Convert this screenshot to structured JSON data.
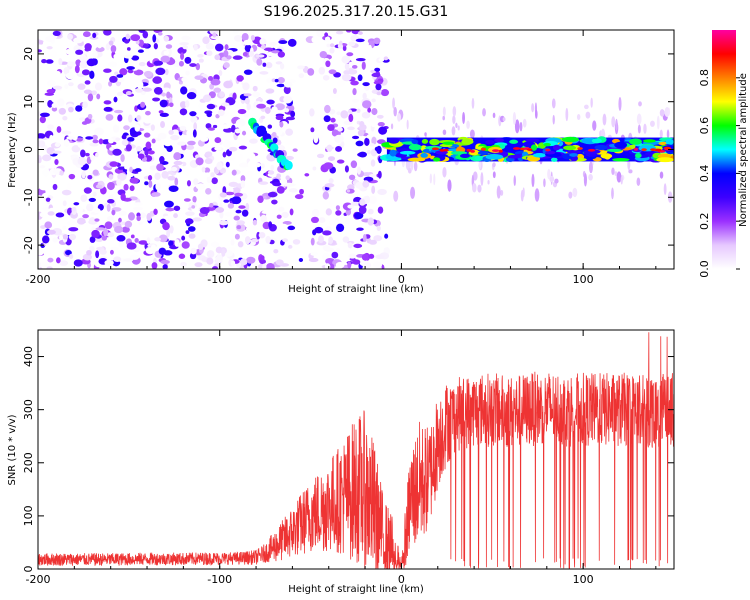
{
  "chart_data": [
    {
      "type": "heatmap",
      "title": "S196.2025.317.20.15.G31",
      "xlabel": "Height of straight line (km)",
      "ylabel": "Frequency (Hz)",
      "xlim": [
        -200,
        150
      ],
      "ylim": [
        -25,
        25
      ],
      "xticks": [
        -200,
        -100,
        0,
        100
      ],
      "yticks": [
        -20,
        -10,
        0,
        10,
        20
      ],
      "colorbar": {
        "label": "Normalized spectral amplitude",
        "range": [
          0.0,
          1.0
        ],
        "ticks": [
          0.0,
          0.2,
          0.4,
          0.6,
          0.8
        ],
        "colors": [
          "#ffffff",
          "#e6c8ff",
          "#9b30ff",
          "#3c00ff",
          "#0000ff",
          "#00ffff",
          "#00ff00",
          "#ffff00",
          "#ff8000",
          "#ff0000",
          "#ff00a0"
        ]
      },
      "regions": [
        {
          "name": "scattered noise",
          "x_range": [
            -200,
            -8
          ],
          "y_range": [
            -25,
            25
          ],
          "amplitude": [
            0.0,
            0.35
          ]
        },
        {
          "name": "diagonal trace",
          "x_range": [
            -82,
            -62
          ],
          "y_range": [
            -4,
            6
          ],
          "amplitude": [
            0.3,
            0.6
          ]
        },
        {
          "name": "carrier line",
          "x_range": [
            -8,
            150
          ],
          "y_range": [
            -2,
            2
          ],
          "amplitude": [
            0.3,
            1.0
          ]
        }
      ]
    },
    {
      "type": "line",
      "xlabel": "Height of straight line (km)",
      "ylabel": "SNR (10 * v/v)",
      "xlim": [
        -200,
        150
      ],
      "ylim": [
        0,
        450
      ],
      "xticks": [
        -200,
        -100,
        0,
        100
      ],
      "yticks": [
        0,
        100,
        200,
        300,
        400
      ],
      "color": "#ee3333",
      "series": [
        {
          "name": "SNR",
          "x": [
            -200,
            -180,
            -160,
            -140,
            -120,
            -100,
            -90,
            -80,
            -75,
            -70,
            -65,
            -60,
            -55,
            -50,
            -45,
            -40,
            -35,
            -30,
            -25,
            -20,
            -15,
            -10,
            -5,
            0,
            5,
            10,
            15,
            20,
            25,
            30,
            40,
            50,
            60,
            70,
            80,
            90,
            100,
            110,
            120,
            130,
            140,
            150
          ],
          "values": [
            18,
            18,
            18,
            19,
            19,
            20,
            20,
            22,
            30,
            42,
            55,
            70,
            85,
            100,
            110,
            120,
            130,
            140,
            150,
            150,
            110,
            60,
            40,
            8,
            130,
            160,
            170,
            240,
            275,
            290,
            300,
            300,
            295,
            300,
            305,
            300,
            300,
            300,
            300,
            300,
            300,
            300
          ],
          "spread": [
            12,
            12,
            12,
            12,
            12,
            12,
            12,
            14,
            18,
            30,
            40,
            50,
            60,
            70,
            80,
            90,
            100,
            120,
            140,
            150,
            130,
            80,
            60,
            20,
            100,
            120,
            100,
            90,
            80,
            70,
            70,
            70,
            70,
            70,
            70,
            70,
            70,
            70,
            70,
            70,
            75,
            70
          ]
        }
      ]
    }
  ]
}
